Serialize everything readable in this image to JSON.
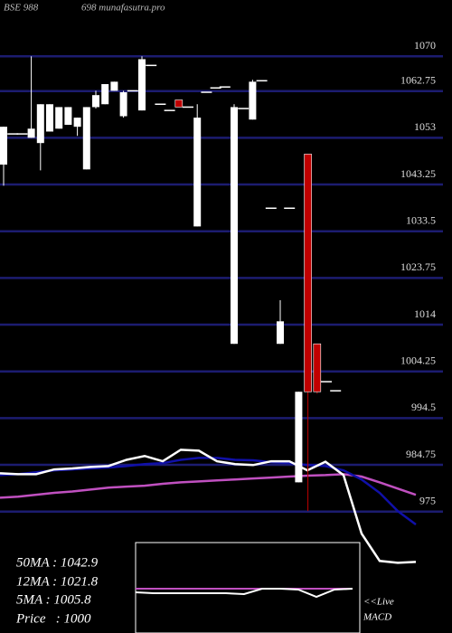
{
  "chart_data": {
    "type": "candlestick",
    "title": "BSE 988",
    "subtitle": "698 munafasutra.pro",
    "ylim": [
      964,
      1081.75
    ],
    "yticks": [
      1070,
      1062.75,
      1053,
      1043.25,
      1033.5,
      1023.75,
      1014,
      1004.25,
      994.5,
      984.75,
      975
    ],
    "grid": true,
    "grid_color": "#1c1c70",
    "up_color": "#ffffff",
    "down_color": "#c00000",
    "open": [
      1047.4,
      1053.8,
      1053.8,
      1053,
      1051.9,
      1054.3,
      1054.9,
      1055.7,
      1055.3,
      1046.4,
      1059.4,
      1060,
      1062.8,
      1057.5,
      1062.8,
      1058.7,
      1068.1,
      1060,
      1058.7,
      1060.9,
      1059.4,
      1034.5,
      1062.5,
      1063.4,
      1063.6,
      1010,
      1059.1,
      1056.8,
      1064.9,
      1038.3,
      1010,
      1038.3,
      981.1,
      1049.6,
      1010,
      1002.1,
      1000.2
    ],
    "high": [
      1055.3,
      1053.8,
      1053.8,
      1070,
      1060,
      1060,
      1059.4,
      1059.4,
      1057.2,
      1059.4,
      1062.8,
      1064.2,
      1064.7,
      1062.8,
      1062.8,
      1070,
      1068.1,
      1060,
      1058.7,
      1060.9,
      1059.4,
      1060,
      1062.5,
      1063.4,
      1063.6,
      1060,
      1059.1,
      1065.1,
      1064.9,
      1038.3,
      1019.1,
      1038.3,
      1000,
      1049.6,
      1010,
      1002.1,
      1000.2
    ],
    "low": [
      1043,
      1053.8,
      1053.8,
      1053,
      1046.2,
      1054.3,
      1054.9,
      1055.7,
      1053.4,
      1046.4,
      1059.1,
      1060,
      1062.8,
      1057.2,
      1062.8,
      1058.7,
      1068.1,
      1060,
      1058.7,
      1059.4,
      1059.4,
      1034.5,
      1062.5,
      1063.4,
      1063.6,
      1010,
      1059.1,
      1056.8,
      1064.9,
      1038.3,
      1010,
      1038.3,
      981.1,
      975.1,
      999.6,
      1002.1,
      1000.2
    ],
    "close": [
      1055.3,
      1053.8,
      1053.8,
      1054.9,
      1060,
      1060,
      1059.4,
      1059.4,
      1057.2,
      1059.4,
      1061.9,
      1064.2,
      1064.7,
      1062.5,
      1062.8,
      1069.4,
      1068.1,
      1060,
      1058.7,
      1059.4,
      1059.4,
      1057.2,
      1062.5,
      1063.4,
      1063.6,
      1059.4,
      1059.1,
      1064.7,
      1064.9,
      1038.3,
      1014.7,
      1038.3,
      1000,
      1000,
      1000,
      1002.1,
      1000.2
    ],
    "series": [
      {
        "color": "#c050c0",
        "values": [
          977.9,
          978.1,
          978.5,
          978.9,
          979.2,
          979.6,
          980.0,
          980.2,
          980.4,
          980.8,
          981.1,
          981.3,
          981.5,
          981.7,
          981.9,
          982.1,
          982.3,
          982.5,
          982.6,
          982.8,
          982.3,
          981.1,
          979.8,
          978.5
        ]
      },
      {
        "color": "#1010a8",
        "values": [
          982.6,
          982.8,
          983.2,
          983.6,
          983.8,
          984.0,
          984.2,
          984.5,
          984.9,
          985.1,
          985.8,
          986.2,
          986.2,
          985.8,
          985.7,
          985.3,
          985.1,
          984.7,
          984.5,
          983.6,
          981.7,
          978.9,
          975.1,
          972.3
        ]
      },
      {
        "color": "#ffffff",
        "values": [
          983.0,
          982.8,
          982.8,
          983.8,
          984.0,
          984.3,
          984.5,
          985.8,
          986.6,
          985.5,
          987.9,
          987.7,
          985.5,
          984.9,
          984.7,
          985.5,
          985.5,
          983.6,
          985.4,
          982.6,
          970.4,
          964.7,
          964.3,
          964.5
        ]
      }
    ],
    "ma_labels": [
      "50MA : 1042.9",
      "12MA : 1021.8",
      "5MA : 1005.8",
      "Price   : 1000"
    ],
    "macd": {
      "ylim": [
        -1,
        1
      ],
      "labels": [
        "<<Live",
        "MACD"
      ],
      "signal": {
        "color": "#c050c0",
        "values": [
          -0.02,
          -0.02,
          -0.02,
          -0.02,
          -0.02,
          -0.02,
          -0.02,
          -0.02,
          -0.02,
          -0.02,
          -0.02,
          -0.02,
          -0.02
        ]
      },
      "macd": {
        "color": "#ffffff",
        "values": [
          -0.1,
          -0.12,
          -0.12,
          -0.12,
          -0.12,
          -0.12,
          -0.14,
          -0.02,
          -0.02,
          -0.04,
          -0.2,
          -0.04,
          -0.02
        ]
      }
    }
  }
}
